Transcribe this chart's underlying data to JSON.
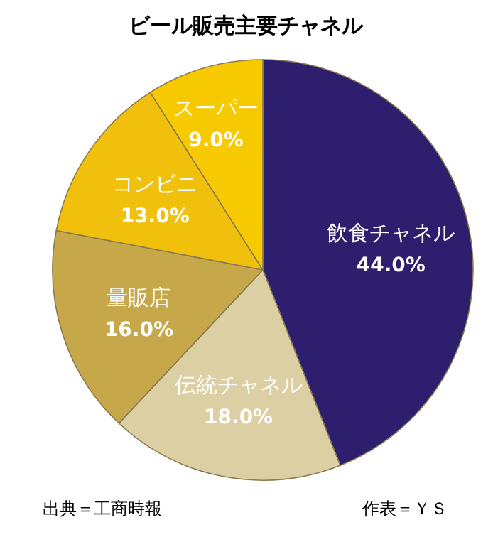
{
  "chart_data": {
    "type": "pie",
    "title": "ビール販売主要チャネル",
    "categories": [
      "飲食チャネル",
      "伝統チャネル",
      "量販店",
      "コンビニ",
      "スーパー"
    ],
    "values": [
      44.0,
      18.0,
      16.0,
      13.0,
      9.0
    ],
    "colors": [
      "#2e1f6e",
      "#dccfa3",
      "#c6a84a",
      "#f0c00c",
      "#f7c900"
    ],
    "value_labels": [
      "44.0%",
      "18.0%",
      "16.0%",
      "13.0%",
      "9.0%"
    ],
    "annotations": [
      "出典＝工商時報",
      "作表＝ＹＳ"
    ]
  }
}
